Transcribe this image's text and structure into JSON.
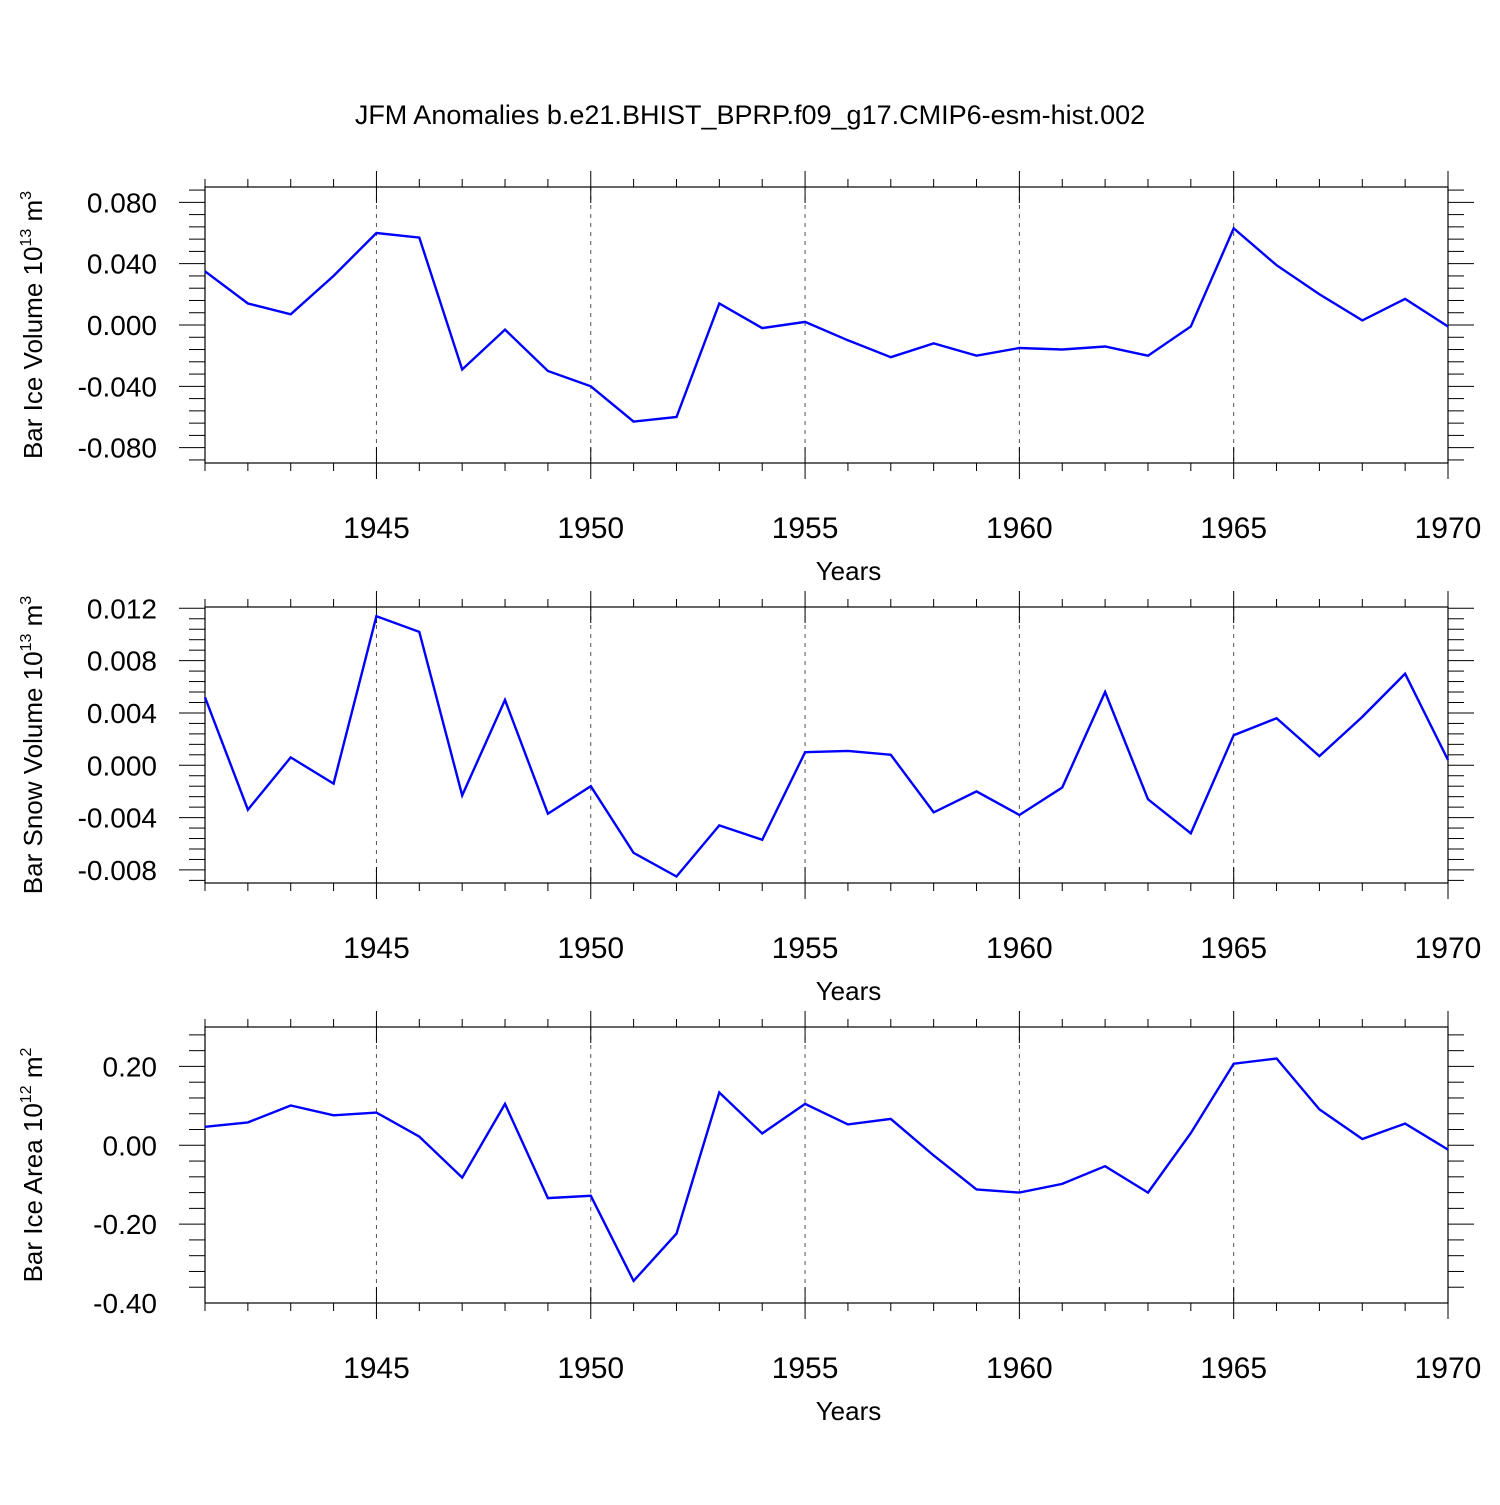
{
  "title": "JFM Anomalies b.e21.BHIST_BPRP.f09_g17.CMIP6-esm-hist.002",
  "colors": {
    "line": "#0000ff",
    "axis": "#000000",
    "grid": "#555555",
    "background": "#ffffff"
  },
  "chart_data": [
    {
      "type": "line",
      "ylabel": {
        "prefix": "Bar Ice Volume 10",
        "exponent": "13",
        "unit": " m",
        "unit_exponent": "3"
      },
      "xlabel": "Years",
      "xlim": [
        1941,
        1970
      ],
      "ylim": [
        -0.09,
        0.09
      ],
      "yticks": [
        "0.080",
        "0.040",
        "0.000",
        "-0.040",
        "-0.080"
      ],
      "ytick_values": [
        0.08,
        0.04,
        0.0,
        -0.04,
        -0.08
      ],
      "xticks": [
        "1945",
        "1950",
        "1955",
        "1960",
        "1965",
        "1970"
      ],
      "xtick_values": [
        1945,
        1950,
        1955,
        1960,
        1965,
        1970
      ],
      "grid_x": [
        1945,
        1950,
        1955,
        1960,
        1965
      ],
      "series": [
        {
          "name": "Bar Ice Volume",
          "x": [
            1941,
            1942,
            1943,
            1944,
            1945,
            1946,
            1947,
            1948,
            1949,
            1950,
            1951,
            1952,
            1953,
            1954,
            1955,
            1956,
            1957,
            1958,
            1959,
            1960,
            1961,
            1962,
            1963,
            1964,
            1965,
            1966,
            1967,
            1968,
            1969,
            1970
          ],
          "values": [
            0.035,
            0.014,
            0.007,
            0.032,
            0.06,
            0.057,
            -0.029,
            -0.003,
            -0.03,
            -0.04,
            -0.063,
            -0.06,
            0.014,
            -0.002,
            0.002,
            -0.01,
            -0.021,
            -0.012,
            -0.02,
            -0.015,
            -0.016,
            -0.014,
            -0.02,
            -0.001,
            0.063,
            0.039,
            0.02,
            0.003,
            0.017,
            -0.001
          ]
        }
      ]
    },
    {
      "type": "line",
      "ylabel": {
        "prefix": "Bar Snow Volume 10",
        "exponent": "13",
        "unit": " m",
        "unit_exponent": "3"
      },
      "xlabel": "Years",
      "xlim": [
        1941,
        1970
      ],
      "ylim": [
        -0.009,
        0.0121
      ],
      "yticks": [
        "0.012",
        "0.008",
        "0.004",
        "0.000",
        "-0.004",
        "-0.008"
      ],
      "ytick_values": [
        0.012,
        0.008,
        0.004,
        0.0,
        -0.004,
        -0.008
      ],
      "xticks": [
        "1945",
        "1950",
        "1955",
        "1960",
        "1965",
        "1970"
      ],
      "xtick_values": [
        1945,
        1950,
        1955,
        1960,
        1965,
        1970
      ],
      "grid_x": [
        1945,
        1950,
        1955,
        1960,
        1965
      ],
      "series": [
        {
          "name": "Bar Snow Volume",
          "x": [
            1941,
            1942,
            1943,
            1944,
            1945,
            1946,
            1947,
            1948,
            1949,
            1950,
            1951,
            1952,
            1953,
            1954,
            1955,
            1956,
            1957,
            1958,
            1959,
            1960,
            1961,
            1962,
            1963,
            1964,
            1965,
            1966,
            1967,
            1968,
            1969,
            1970
          ],
          "values": [
            0.0052,
            -0.0034,
            0.0006,
            -0.0014,
            0.0114,
            0.0102,
            -0.0023,
            0.005,
            -0.0037,
            -0.0016,
            -0.0067,
            -0.0085,
            -0.0046,
            -0.0057,
            0.001,
            0.0011,
            0.0008,
            -0.0036,
            -0.002,
            -0.0038,
            -0.0017,
            0.0056,
            -0.0026,
            -0.0052,
            0.0023,
            0.0036,
            0.0007,
            0.0037,
            0.007,
            0.0004
          ]
        }
      ]
    },
    {
      "type": "line",
      "ylabel": {
        "prefix": "Bar Ice Area 10",
        "exponent": "12",
        "unit": " m",
        "unit_exponent": "2"
      },
      "xlabel": "Years",
      "xlim": [
        1941,
        1970
      ],
      "ylim": [
        -0.4,
        0.3
      ],
      "yticks": [
        "0.20",
        "0.00",
        "-0.20",
        "-0.40"
      ],
      "ytick_values": [
        0.2,
        0.0,
        -0.2,
        -0.4
      ],
      "xticks": [
        "1945",
        "1950",
        "1955",
        "1960",
        "1965",
        "1970"
      ],
      "xtick_values": [
        1945,
        1950,
        1955,
        1960,
        1965,
        1970
      ],
      "grid_x": [
        1945,
        1950,
        1955,
        1960,
        1965
      ],
      "series": [
        {
          "name": "Bar Ice Area",
          "x": [
            1941,
            1942,
            1943,
            1944,
            1945,
            1946,
            1947,
            1948,
            1949,
            1950,
            1951,
            1952,
            1953,
            1954,
            1955,
            1956,
            1957,
            1958,
            1959,
            1960,
            1961,
            1962,
            1963,
            1964,
            1965,
            1966,
            1967,
            1968,
            1969,
            1970
          ],
          "values": [
            0.047,
            0.058,
            0.101,
            0.076,
            0.083,
            0.022,
            -0.082,
            0.105,
            -0.134,
            -0.128,
            -0.344,
            -0.224,
            0.134,
            0.03,
            0.105,
            0.053,
            0.067,
            -0.026,
            -0.112,
            -0.12,
            -0.098,
            -0.053,
            -0.12,
            0.031,
            0.207,
            0.22,
            0.091,
            0.016,
            0.055,
            -0.011
          ]
        }
      ]
    }
  ]
}
